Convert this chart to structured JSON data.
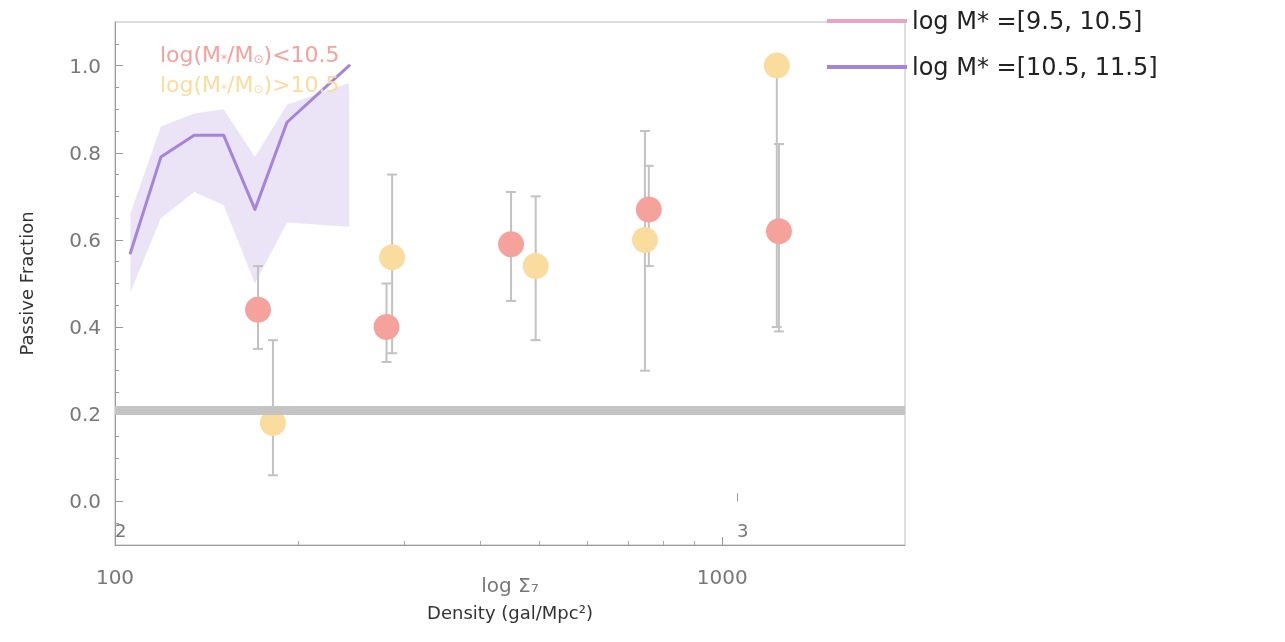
{
  "chart_data": {
    "type": "scatter",
    "xlabel": "Density (gal/Mpc²)",
    "ylabel": "Passive Fraction",
    "x2label": "log Σ₇",
    "log": "x",
    "xlim": [
      100,
      2000
    ],
    "xticks": [
      100,
      1000
    ],
    "x2lim": [
      2,
      3.27
    ],
    "x2ticks": [
      2,
      3
    ],
    "ylim": [
      -0.1,
      1.1
    ],
    "yticks": [
      {
        "value": 0,
        "label": "0.0"
      },
      {
        "value": 0.2,
        "label": "0.2"
      },
      {
        "value": 0.4,
        "label": "0.4"
      },
      {
        "value": 0.6,
        "label": "0.6"
      },
      {
        "value": 0.8,
        "label": "0.8"
      },
      {
        "value": 1,
        "label": "1.0"
      }
    ],
    "grid": false,
    "legend": "top right",
    "marker": "circle",
    "ref_lines": [
      {
        "axis": "y",
        "value": 0.21,
        "color": "#c4c4c4"
      }
    ],
    "series": [
      {
        "type": "line",
        "name": "log M* =[9.5, 10.5]",
        "color": "#e8a3c6",
        "marker": "none"
      },
      {
        "type": "line",
        "name": "log M* =[10.5, 11.5]",
        "color": "#a584dc",
        "marker": "none",
        "x": [
          106,
          119,
          135,
          151,
          170,
          192,
          243
        ],
        "values": [
          0.57,
          0.79,
          0.84,
          0.84,
          0.67,
          0.87,
          1.0
        ],
        "lower": [
          0.48,
          0.65,
          0.71,
          0.68,
          0.5,
          0.64,
          0.63
        ],
        "upper": [
          0.66,
          0.86,
          0.89,
          0.9,
          0.79,
          0.91,
          0.96
        ]
      },
      {
        "name": "log(M$_{*}$/M$_{⊙}$)<10.5",
        "color": "#f4a29b",
        "x": [
          172,
          280,
          449,
          757,
          1240
        ],
        "values": [
          0.44,
          0.4,
          0.59,
          0.67,
          0.62
        ],
        "errors": [
          [
            0.35,
            0.54
          ],
          [
            0.32,
            0.5
          ],
          [
            0.46,
            0.71
          ],
          [
            0.54,
            0.77
          ],
          [
            0.39,
            0.82
          ]
        ]
      },
      {
        "name": "log(M$_{*}$/M$_{⊙}$)>10.5",
        "color": "#f9dc9e",
        "x": [
          182,
          286,
          493,
          746,
          1230
        ],
        "values": [
          0.18,
          0.56,
          0.54,
          0.6,
          1.0
        ],
        "errors": [
          [
            0.06,
            0.37
          ],
          [
            0.34,
            0.75
          ],
          [
            0.37,
            0.7
          ],
          [
            0.3,
            0.85
          ],
          [
            0.4,
            1.0
          ]
        ]
      }
    ]
  }
}
